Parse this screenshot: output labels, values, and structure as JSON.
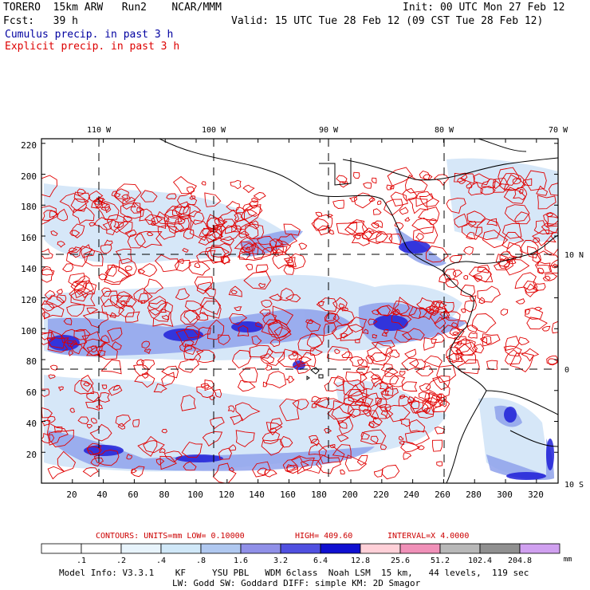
{
  "header": {
    "model": "TORERO  15km ARW   Run2    NCAR/MMM",
    "init": "Init: 00 UTC Mon 27 Feb 12",
    "fcst": "Fcst:   39 h",
    "valid": "Valid: 15 UTC Tue 28 Feb 12 (09 CST Tue 28 Feb 12)",
    "legend_cumulus": "Cumulus precip. in past 3 h",
    "legend_explicit": "Explicit precip. in past 3 h"
  },
  "colors": {
    "cumulus": "#0000a0",
    "explicit": "#dd0000",
    "contour": "#e00000"
  },
  "axes": {
    "top_lon": [
      "110 W",
      "100 W",
      "90 W",
      "80 W",
      "70 W"
    ],
    "right_lat": [
      "10 N",
      "0",
      "10 S"
    ],
    "left_ticks": [
      "220",
      "200",
      "180",
      "160",
      "140",
      "120",
      "100",
      "80",
      "60",
      "40",
      "20"
    ],
    "bottom_ticks": [
      "20",
      "40",
      "60",
      "80",
      "100",
      "120",
      "140",
      "160",
      "180",
      "200",
      "220",
      "240",
      "260",
      "280",
      "300",
      "320"
    ]
  },
  "contour_info": {
    "label": "CONTOURS:  UNITS=mm  LOW= 0.10000",
    "high": "HIGH=  409.60",
    "interval": "INTERVAL=X  4.0000"
  },
  "colorbar": {
    "labels": [
      ".1",
      ".2",
      ".4",
      ".8",
      "1.6",
      "3.2",
      "6.4",
      "12.8",
      "25.6",
      "51.2",
      "102.4",
      "204.8"
    ],
    "colors": [
      "#ffffff",
      "#ffffff",
      "#e8f4fc",
      "#d0e8f8",
      "#b0c8f0",
      "#9090e8",
      "#5050e0",
      "#1010d0",
      "#ffd0d8",
      "#f090b8",
      "#b8b8b8",
      "#909090",
      "#d0a0f0"
    ],
    "unit": "mm"
  },
  "footer": {
    "line1": "Model Info: V3.3.1    KF     YSU PBL   WDM 6class  Noah LSM  15 km,   44 levels,  119 sec",
    "line2": "LW: Godd SW: Goddard DIFF: simple KM: 2D Smagor"
  }
}
